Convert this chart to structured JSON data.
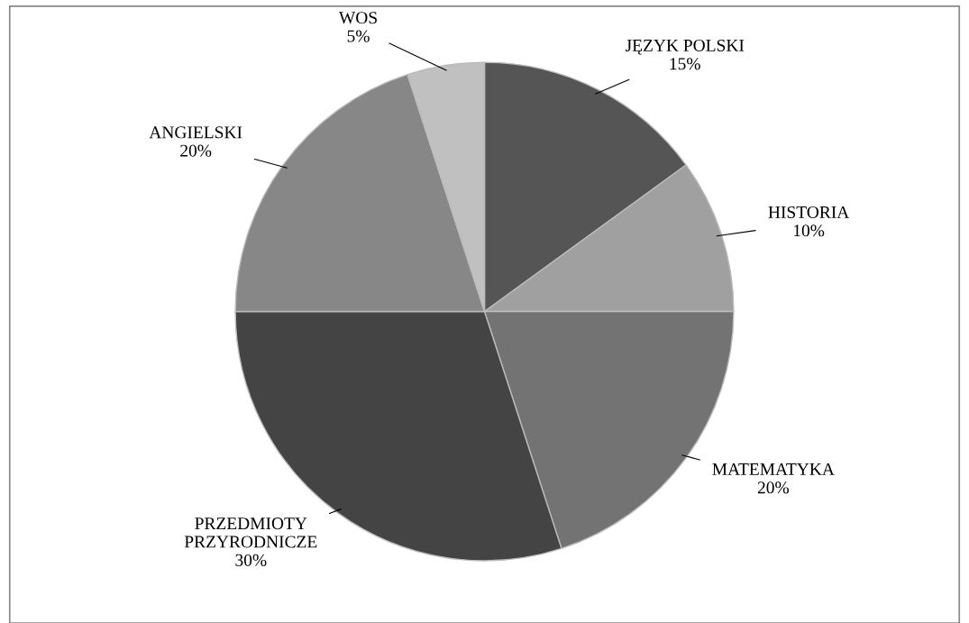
{
  "chart_data": {
    "type": "pie",
    "categories": [
      "JĘZYK POLSKI",
      "HISTORIA",
      "MATEMATYKA",
      "PRZEDMIOTY PRZYRODNICZE",
      "ANGIELSKI",
      "WOS"
    ],
    "values": [
      15,
      10,
      20,
      30,
      20,
      5
    ],
    "colors": [
      "#555555",
      "#a0a0a0",
      "#737373",
      "#444444",
      "#878787",
      "#c0c0c0"
    ],
    "value_labels": [
      "15%",
      "10%",
      "20%",
      "30%",
      "20%",
      "5%"
    ],
    "legend": false
  }
}
